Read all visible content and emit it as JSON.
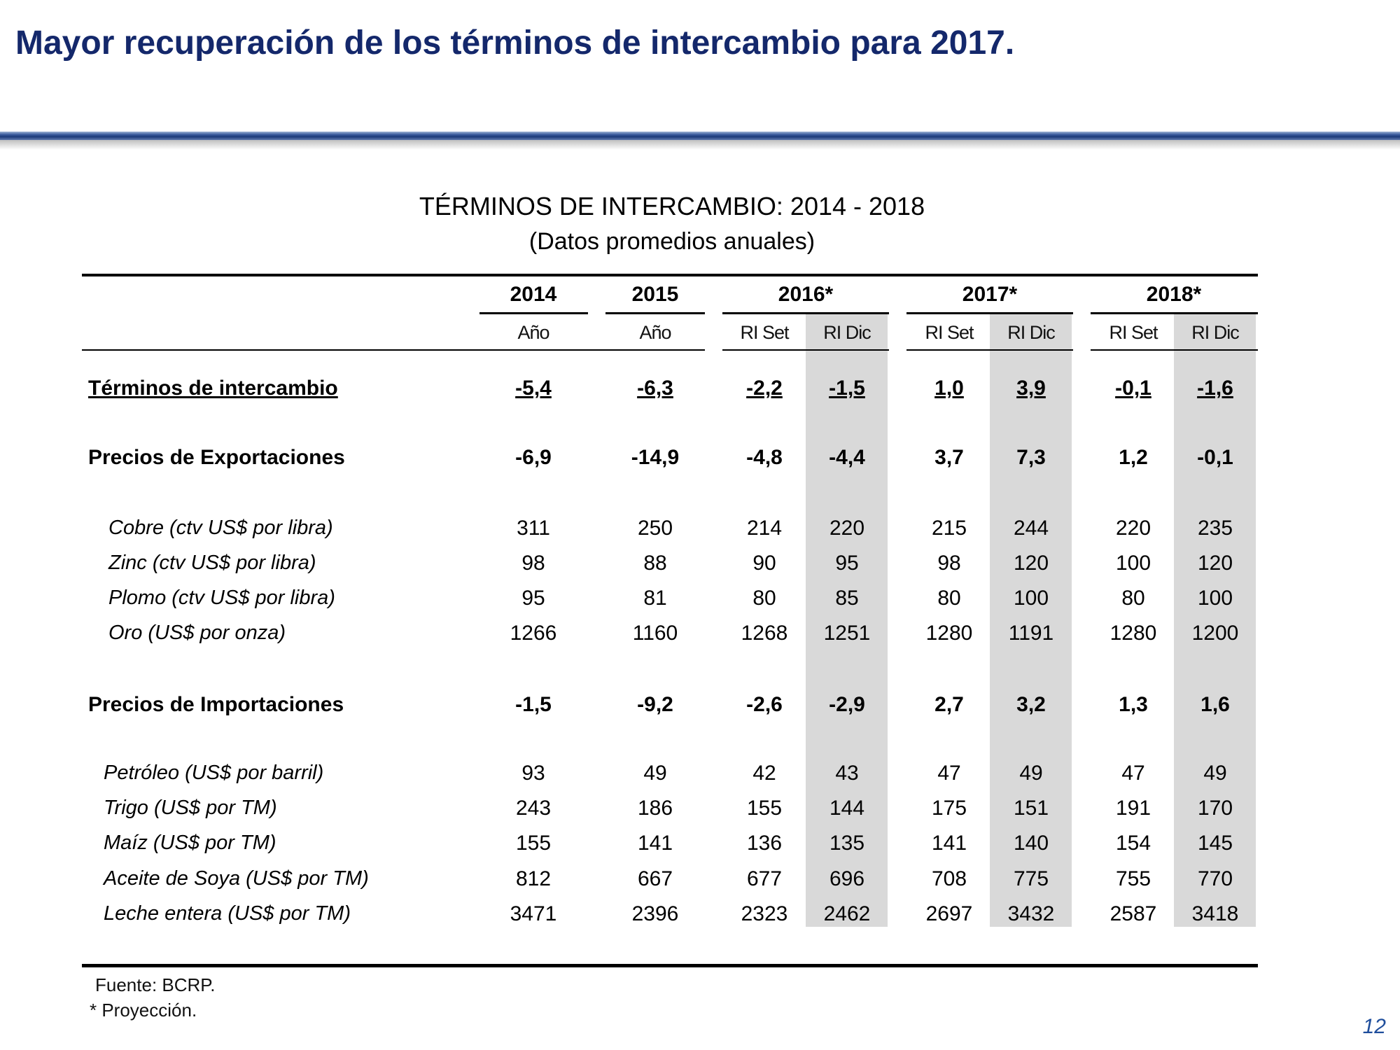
{
  "title": "Mayor recuperación de los términos de intercambio para 2017.",
  "table": {
    "title": "TÉRMINOS DE INTERCAMBIO: 2014 - 2018",
    "subtitle": "(Datos promedios anuales)",
    "year_groups": [
      "2014",
      "2015",
      "2016*",
      "2017*",
      "2018*"
    ],
    "subheaders": [
      "Año",
      "Año",
      "RI Set",
      "RI Dic",
      "RI Set",
      "RI Dic",
      "RI Set",
      "RI Dic"
    ],
    "rows": [
      {
        "label": "Términos de intercambio",
        "values": [
          "-5,4",
          "-6,3",
          "-2,2",
          "-1,5",
          "1,0",
          "3,9",
          "-0,1",
          "-1,6"
        ]
      },
      {
        "label": "Precios de Exportaciones",
        "values": [
          "-6,9",
          "-14,9",
          "-4,8",
          "-4,4",
          "3,7",
          "7,3",
          "1,2",
          "-0,1"
        ]
      },
      {
        "label": "Cobre (ctv US$ por libra)",
        "values": [
          "311",
          "250",
          "214",
          "220",
          "215",
          "244",
          "220",
          "235"
        ]
      },
      {
        "label": "Zinc (ctv US$ por libra)",
        "values": [
          "98",
          "88",
          "90",
          "95",
          "98",
          "120",
          "100",
          "120"
        ]
      },
      {
        "label": "Plomo (ctv US$ por libra)",
        "values": [
          "95",
          "81",
          "80",
          "85",
          "80",
          "100",
          "80",
          "100"
        ]
      },
      {
        "label": "Oro (US$ por onza)",
        "values": [
          "1266",
          "1160",
          "1268",
          "1251",
          "1280",
          "1191",
          "1280",
          "1200"
        ]
      },
      {
        "label": "Precios de Importaciones",
        "values": [
          "-1,5",
          "-9,2",
          "-2,6",
          "-2,9",
          "2,7",
          "3,2",
          "1,3",
          "1,6"
        ]
      },
      {
        "label": "Petróleo (US$ por barril)",
        "values": [
          "93",
          "49",
          "42",
          "43",
          "47",
          "49",
          "47",
          "49"
        ]
      },
      {
        "label": "Trigo (US$ por TM)",
        "values": [
          "243",
          "186",
          "155",
          "144",
          "175",
          "151",
          "191",
          "170"
        ]
      },
      {
        "label": "Maíz (US$ por TM)",
        "values": [
          "155",
          "141",
          "136",
          "135",
          "141",
          "140",
          "154",
          "145"
        ]
      },
      {
        "label": "Aceite de Soya (US$ por TM)",
        "values": [
          "812",
          "667",
          "677",
          "696",
          "708",
          "775",
          "755",
          "770"
        ]
      },
      {
        "label": "Leche entera (US$ por TM)",
        "values": [
          "3471",
          "2396",
          "2323",
          "2462",
          "2697",
          "3432",
          "2587",
          "3418"
        ]
      }
    ],
    "source": "Fuente: BCRP.",
    "footnote": "* Proyección."
  },
  "page_number": "12",
  "colors": {
    "title": "#14286b",
    "shade": "#d9d9d9",
    "page_number": "#1f4e9c"
  }
}
